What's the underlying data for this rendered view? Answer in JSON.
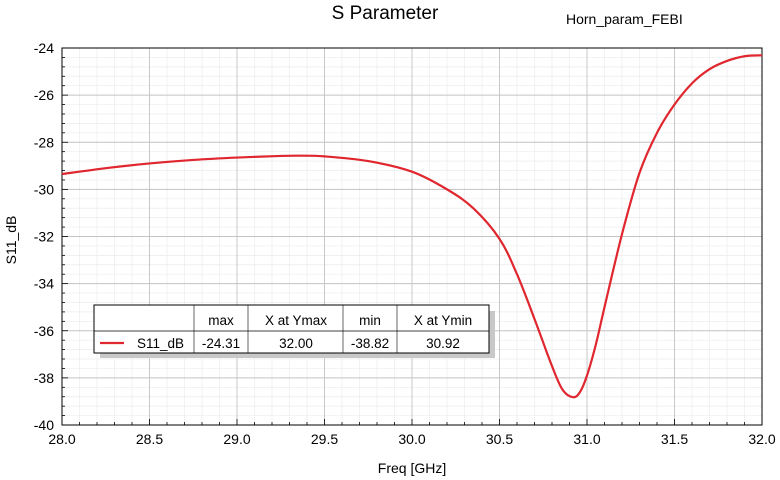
{
  "chart_data": {
    "type": "line",
    "title": "S Parameter",
    "subtitle": "Horn_param_FEBI",
    "xlabel": "Freq [GHz]",
    "ylabel": "S11_dB",
    "xlim": [
      28.0,
      32.0
    ],
    "ylim": [
      -40,
      -24
    ],
    "x_ticks": [
      "28.0",
      "28.5",
      "29.0",
      "29.5",
      "30.0",
      "30.5",
      "31.0",
      "31.5",
      "32.0"
    ],
    "y_ticks": [
      "-24",
      "-26",
      "-28",
      "-30",
      "-32",
      "-34",
      "-36",
      "-38",
      "-40"
    ],
    "grid": true,
    "series": [
      {
        "name": "S11_dB",
        "color": "#e0262e",
        "x": [
          28.0,
          28.25,
          28.5,
          28.75,
          29.0,
          29.25,
          29.35,
          29.5,
          29.75,
          30.0,
          30.2,
          30.35,
          30.5,
          30.6,
          30.7,
          30.8,
          30.86,
          30.92,
          30.96,
          31.0,
          31.05,
          31.1,
          31.2,
          31.3,
          31.4,
          31.5,
          31.6,
          31.7,
          31.8,
          31.9,
          32.0
        ],
        "y": [
          -29.35,
          -29.1,
          -28.9,
          -28.75,
          -28.65,
          -28.58,
          -28.57,
          -28.6,
          -28.8,
          -29.25,
          -30.0,
          -30.8,
          -32.1,
          -33.6,
          -35.5,
          -37.5,
          -38.5,
          -38.82,
          -38.6,
          -37.9,
          -36.6,
          -35.0,
          -31.9,
          -29.3,
          -27.6,
          -26.4,
          -25.5,
          -24.9,
          -24.55,
          -24.35,
          -24.31
        ]
      }
    ],
    "markers_table": {
      "headers": [
        "",
        "max",
        "X at Ymax",
        "min",
        "X at Ymin"
      ],
      "rows": [
        {
          "name": "S11_dB",
          "max": "-24.31",
          "x_at_ymax": "32.00",
          "min": "-38.82",
          "x_at_ymin": "30.92"
        }
      ]
    }
  }
}
